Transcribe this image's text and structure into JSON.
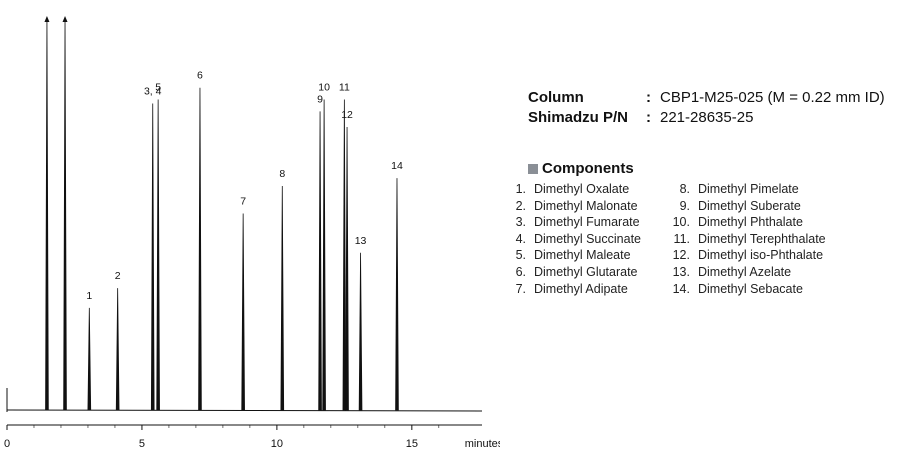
{
  "chart_data": {
    "type": "line",
    "xlabel": "minutes",
    "x_ticks": [
      0,
      5,
      10,
      15
    ],
    "xlim": [
      0,
      17.6
    ],
    "ylim": [
      0,
      100
    ],
    "peaks": [
      {
        "label": "",
        "t": 1.48,
        "h": 100
      },
      {
        "label": "",
        "t": 2.15,
        "h": 100
      },
      {
        "label": "1",
        "t": 3.05,
        "h": 26
      },
      {
        "label": "2",
        "t": 4.1,
        "h": 31
      },
      {
        "label": "3, 4",
        "t": 5.4,
        "h": 78
      },
      {
        "label": "5",
        "t": 5.6,
        "h": 79
      },
      {
        "label": "6",
        "t": 7.15,
        "h": 82
      },
      {
        "label": "7",
        "t": 8.75,
        "h": 50
      },
      {
        "label": "8",
        "t": 10.2,
        "h": 57
      },
      {
        "label": "9",
        "t": 11.6,
        "h": 76
      },
      {
        "label": "10",
        "t": 11.75,
        "h": 79
      },
      {
        "label": "11",
        "t": 12.5,
        "h": 79
      },
      {
        "label": "12",
        "t": 12.6,
        "h": 72
      },
      {
        "label": "13",
        "t": 13.1,
        "h": 40
      },
      {
        "label": "14",
        "t": 14.45,
        "h": 59
      }
    ]
  },
  "column": {
    "label": "Column",
    "value": "CBP1-M25-025 (M = 0.22 mm ID)"
  },
  "part_number": {
    "label": "Shimadzu P/N",
    "value": "221-28635-25"
  },
  "components": {
    "title": "Components",
    "left": [
      {
        "num": "1.",
        "name": "Dimethyl Oxalate"
      },
      {
        "num": "2.",
        "name": "Dimethyl Malonate"
      },
      {
        "num": "3.",
        "name": "Dimethyl Fumarate"
      },
      {
        "num": "4.",
        "name": "Dimethyl Succinate"
      },
      {
        "num": "5.",
        "name": "Dimethyl Maleate"
      },
      {
        "num": "6.",
        "name": "Dimethyl Glutarate"
      },
      {
        "num": "7.",
        "name": "Dimethyl Adipate"
      }
    ],
    "right": [
      {
        "num": "8.",
        "name": "Dimethyl Pimelate"
      },
      {
        "num": "9.",
        "name": "Dimethyl Suberate"
      },
      {
        "num": "10.",
        "name": "Dimethyl Phthalate"
      },
      {
        "num": "11.",
        "name": "Dimethyl Terephthalate"
      },
      {
        "num": "12.",
        "name": "Dimethyl iso-Phthalate"
      },
      {
        "num": "13.",
        "name": "Dimethyl Azelate"
      },
      {
        "num": "14.",
        "name": "Dimethyl Sebacate"
      }
    ]
  },
  "colors": {
    "trace": "#111111",
    "bullet": "#8a8f96"
  }
}
